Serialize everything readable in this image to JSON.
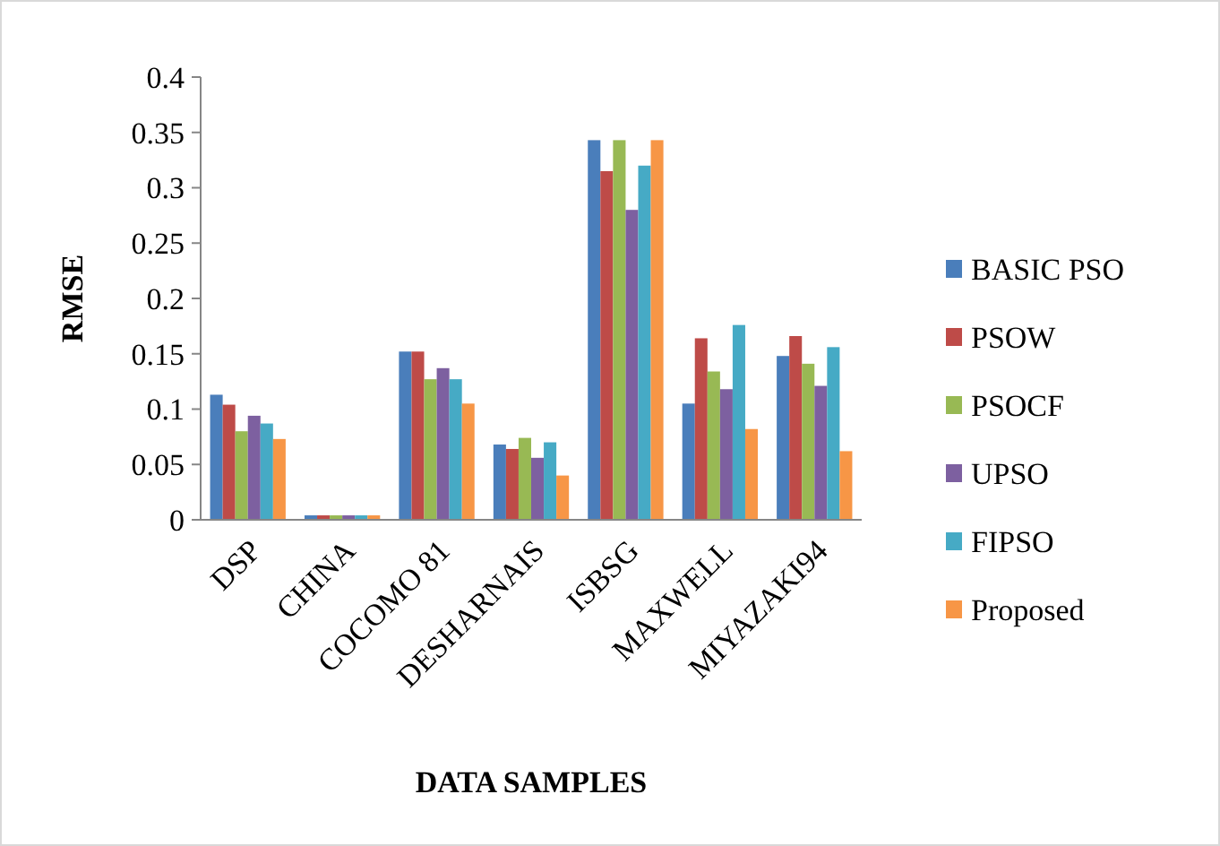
{
  "chart_data": {
    "type": "bar",
    "xlabel": "DATA SAMPLES",
    "ylabel": "RMSE",
    "categories": [
      "DSP",
      "CHINA",
      "COCOMO 81",
      "DESHARNAIS",
      "ISBSG",
      "MAXWELL",
      "MIYAZAKI94"
    ],
    "series": [
      {
        "name": "BASIC PSO",
        "color": "#4a7ebb",
        "values": [
          0.113,
          0.004,
          0.152,
          0.068,
          0.343,
          0.105,
          0.148
        ]
      },
      {
        "name": "PSOW",
        "color": "#be4b48",
        "values": [
          0.104,
          0.004,
          0.152,
          0.064,
          0.315,
          0.164,
          0.166
        ]
      },
      {
        "name": "PSOCF",
        "color": "#98b954",
        "values": [
          0.08,
          0.004,
          0.127,
          0.074,
          0.343,
          0.134,
          0.141
        ]
      },
      {
        "name": "UPSO",
        "color": "#7d60a0",
        "values": [
          0.094,
          0.004,
          0.137,
          0.056,
          0.28,
          0.118,
          0.121
        ]
      },
      {
        "name": "FIPSO",
        "color": "#46aac5",
        "values": [
          0.087,
          0.004,
          0.127,
          0.07,
          0.32,
          0.176,
          0.156
        ]
      },
      {
        "name": "Proposed",
        "color": "#f79646",
        "values": [
          0.073,
          0.004,
          0.105,
          0.04,
          0.343,
          0.082,
          0.062
        ]
      }
    ],
    "ylim": [
      0,
      0.4
    ],
    "yticks": [
      0,
      0.05,
      0.1,
      0.15,
      0.2,
      0.25,
      0.3,
      0.35,
      0.4
    ],
    "grid": false,
    "legend": "right"
  }
}
